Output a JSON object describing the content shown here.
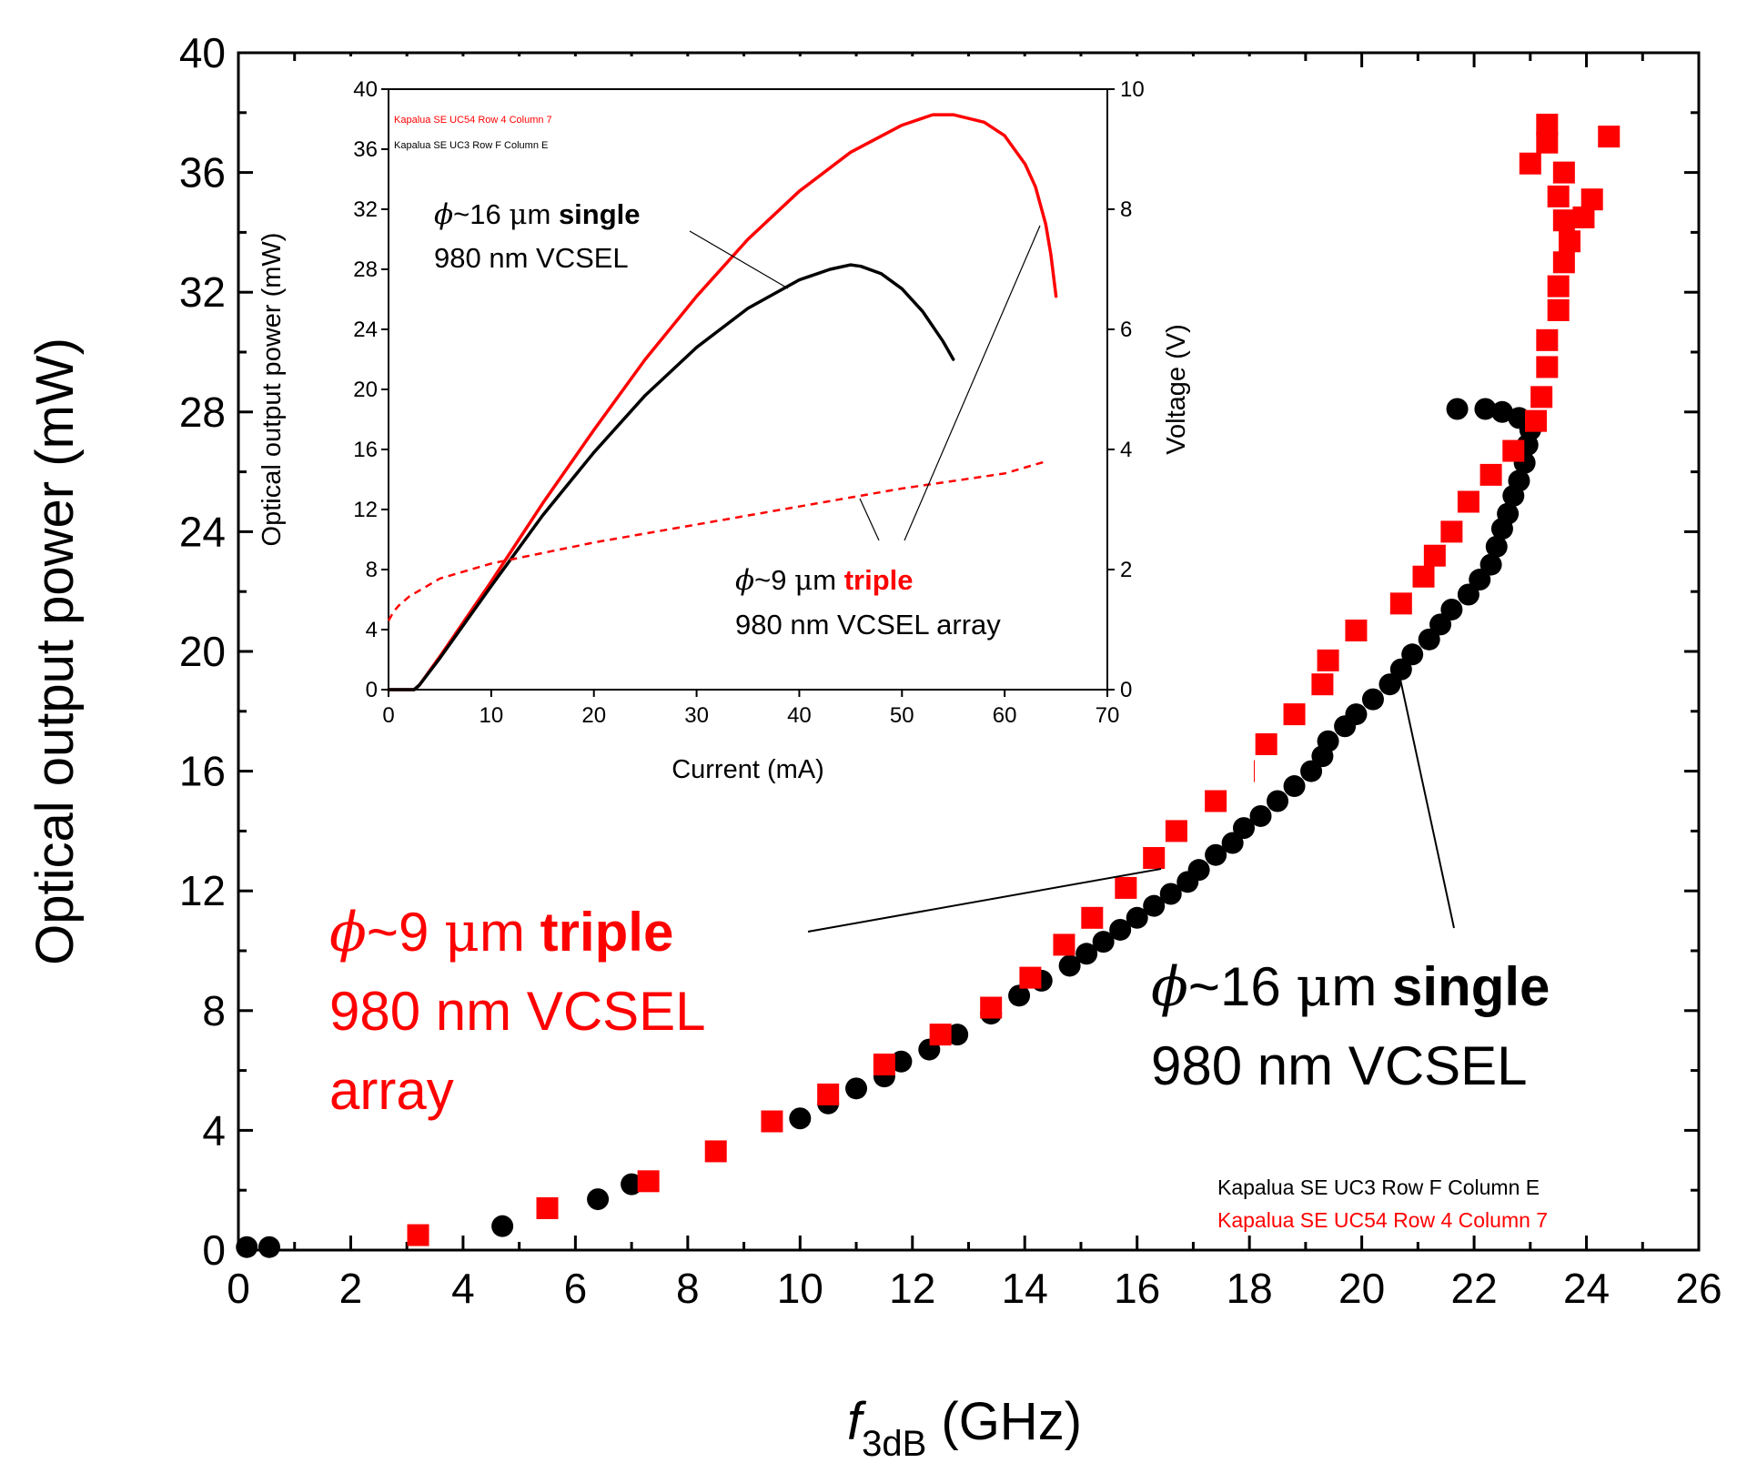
{
  "chart_data": [
    {
      "type": "scatter",
      "xlabel_main": "f",
      "xlabel_sub": "3dB",
      "xlabel_unit": " (GHz)",
      "ylabel": "Optical output power (mW)",
      "xlim": [
        0,
        26
      ],
      "ylim": [
        0,
        40
      ],
      "xticks": [
        "0",
        "2",
        "4",
        "6",
        "8",
        "10",
        "12",
        "14",
        "16",
        "18",
        "20",
        "22",
        "24",
        "26"
      ],
      "yticks": [
        "0",
        "4",
        "8",
        "12",
        "16",
        "20",
        "24",
        "28",
        "32",
        "36",
        "40"
      ],
      "series": [
        {
          "name": "Kapalua SE UC3 Row F Column E",
          "color": "#000000",
          "marker": "circle",
          "points": [
            [
              0.15,
              0.1
            ],
            [
              0.55,
              0.1
            ],
            [
              4.7,
              0.8
            ],
            [
              6.4,
              1.7
            ],
            [
              7.0,
              2.2
            ],
            [
              10.0,
              4.4
            ],
            [
              10.5,
              4.9
            ],
            [
              11.0,
              5.4
            ],
            [
              11.5,
              5.8
            ],
            [
              11.8,
              6.3
            ],
            [
              12.3,
              6.7
            ],
            [
              12.8,
              7.2
            ],
            [
              13.4,
              7.9
            ],
            [
              13.9,
              8.5
            ],
            [
              14.3,
              9.0
            ],
            [
              14.8,
              9.5
            ],
            [
              15.1,
              9.9
            ],
            [
              15.4,
              10.3
            ],
            [
              15.7,
              10.7
            ],
            [
              16.0,
              11.1
            ],
            [
              16.3,
              11.5
            ],
            [
              16.6,
              11.9
            ],
            [
              16.9,
              12.3
            ],
            [
              17.1,
              12.7
            ],
            [
              17.4,
              13.2
            ],
            [
              17.7,
              13.6
            ],
            [
              17.9,
              14.1
            ],
            [
              18.2,
              14.5
            ],
            [
              18.5,
              15.0
            ],
            [
              18.8,
              15.5
            ],
            [
              19.1,
              16.0
            ],
            [
              19.3,
              16.5
            ],
            [
              19.4,
              17.0
            ],
            [
              19.7,
              17.5
            ],
            [
              19.9,
              17.9
            ],
            [
              20.2,
              18.4
            ],
            [
              20.5,
              18.9
            ],
            [
              20.7,
              19.4
            ],
            [
              20.9,
              19.9
            ],
            [
              21.2,
              20.4
            ],
            [
              21.4,
              20.9
            ],
            [
              21.6,
              21.4
            ],
            [
              21.9,
              21.9
            ],
            [
              22.1,
              22.4
            ],
            [
              22.3,
              22.9
            ],
            [
              22.4,
              23.5
            ],
            [
              22.5,
              24.1
            ],
            [
              22.6,
              24.6
            ],
            [
              22.7,
              25.2
            ],
            [
              22.8,
              25.7
            ],
            [
              22.9,
              26.3
            ],
            [
              22.95,
              26.9
            ],
            [
              23.0,
              27.4
            ],
            [
              22.8,
              27.8
            ],
            [
              22.5,
              28.0
            ],
            [
              22.2,
              28.1
            ],
            [
              21.7,
              28.1
            ]
          ]
        },
        {
          "name": "Kapalua SE UC54 Row 4 Column 7",
          "color": "#ff0000",
          "marker": "square",
          "points": [
            [
              3.2,
              0.5
            ],
            [
              5.5,
              1.4
            ],
            [
              7.3,
              2.3
            ],
            [
              8.5,
              3.3
            ],
            [
              9.5,
              4.3
            ],
            [
              10.5,
              5.2
            ],
            [
              11.5,
              6.2
            ],
            [
              12.5,
              7.2
            ],
            [
              13.4,
              8.1
            ],
            [
              14.1,
              9.1
            ],
            [
              14.7,
              10.2
            ],
            [
              15.2,
              11.1
            ],
            [
              15.8,
              12.1
            ],
            [
              16.3,
              13.1
            ],
            [
              16.7,
              14.0
            ],
            [
              17.4,
              15.0
            ],
            [
              17.9,
              16.0
            ],
            [
              18.3,
              16.9
            ],
            [
              18.8,
              17.9
            ],
            [
              19.3,
              18.9
            ],
            [
              19.4,
              19.7
            ],
            [
              19.9,
              20.7
            ],
            [
              20.7,
              21.6
            ],
            [
              21.1,
              22.5
            ],
            [
              21.3,
              23.2
            ],
            [
              21.6,
              24.0
            ],
            [
              21.9,
              25.0
            ],
            [
              22.3,
              25.9
            ],
            [
              22.7,
              26.7
            ],
            [
              23.1,
              27.7
            ],
            [
              23.2,
              28.5
            ],
            [
              23.3,
              29.5
            ],
            [
              23.3,
              30.4
            ],
            [
              23.5,
              31.4
            ],
            [
              23.5,
              32.2
            ],
            [
              23.6,
              33.0
            ],
            [
              23.7,
              33.7
            ],
            [
              23.6,
              34.4
            ],
            [
              23.5,
              35.2
            ],
            [
              23.95,
              34.5
            ],
            [
              23.6,
              36.0
            ],
            [
              23.3,
              37.0
            ],
            [
              23.3,
              37.6
            ],
            [
              23.0,
              36.3
            ],
            [
              24.1,
              35.1
            ],
            [
              24.4,
              37.2
            ]
          ]
        }
      ],
      "legend": [
        {
          "text": "Kapalua SE UC3 Row F Column E",
          "color": "#000000"
        },
        {
          "text": "Kapalua SE UC54 Row 4 Column 7",
          "color": "#ff0000"
        }
      ],
      "legend_position": "bottom-right",
      "annotations": [
        {
          "phi": "ϕ",
          "a": "~9 ",
          "mu": "μ",
          "b": "m ",
          "bold": "triple",
          "line2": "980 nm VCSEL",
          "line3": "array",
          "color": "#ff0000"
        },
        {
          "phi": "ϕ",
          "a": "~16 ",
          "mu": "μ",
          "b": "m ",
          "bold": "single",
          "line2": "980 nm VCSEL",
          "color": "#000000"
        }
      ]
    },
    {
      "type": "line",
      "inset": true,
      "xlabel": "Current (mA)",
      "ylabel_left": "Optical output power (mW)",
      "ylabel_right": "Voltage (V)",
      "xlim": [
        0,
        70
      ],
      "ylim_left": [
        0,
        40
      ],
      "ylim_right": [
        0,
        10
      ],
      "xticks": [
        "0",
        "10",
        "20",
        "30",
        "40",
        "50",
        "60",
        "70"
      ],
      "yticks_left": [
        "0",
        "4",
        "8",
        "12",
        "16",
        "20",
        "24",
        "28",
        "32",
        "36",
        "40"
      ],
      "yticks_right": [
        "0",
        "2",
        "4",
        "6",
        "8",
        "10"
      ],
      "series": [
        {
          "name": "Kapalua SE UC54 Row 4 Column 7",
          "quantity": "power",
          "color": "#ff0000",
          "style": "solid",
          "points": [
            [
              0,
              0
            ],
            [
              2.5,
              0
            ],
            [
              3,
              0.3
            ],
            [
              5,
              2.2
            ],
            [
              10,
              7.2
            ],
            [
              15,
              12.4
            ],
            [
              20,
              17.3
            ],
            [
              25,
              22.0
            ],
            [
              30,
              26.2
            ],
            [
              35,
              30.0
            ],
            [
              40,
              33.2
            ],
            [
              45,
              35.8
            ],
            [
              50,
              37.6
            ],
            [
              53,
              38.3
            ],
            [
              55,
              38.3
            ],
            [
              58,
              37.8
            ],
            [
              60,
              36.9
            ],
            [
              62,
              35.0
            ],
            [
              63,
              33.5
            ],
            [
              64,
              31.0
            ],
            [
              64.5,
              29.0
            ],
            [
              65,
              26.2
            ]
          ]
        },
        {
          "name": "Kapalua SE UC3 Row F Column E",
          "quantity": "power",
          "color": "#000000",
          "style": "solid",
          "points": [
            [
              0,
              0
            ],
            [
              2.5,
              0
            ],
            [
              3,
              0.3
            ],
            [
              5,
              2.1
            ],
            [
              10,
              6.9
            ],
            [
              15,
              11.6
            ],
            [
              20,
              15.8
            ],
            [
              25,
              19.6
            ],
            [
              30,
              22.8
            ],
            [
              35,
              25.4
            ],
            [
              40,
              27.3
            ],
            [
              43,
              28.0
            ],
            [
              45,
              28.3
            ],
            [
              46,
              28.2
            ],
            [
              48,
              27.7
            ],
            [
              50,
              26.7
            ],
            [
              52,
              25.2
            ],
            [
              54,
              23.2
            ],
            [
              55,
              22.0
            ]
          ]
        },
        {
          "name": "Voltage",
          "quantity": "voltage",
          "color": "#ff0000",
          "style": "dashed",
          "points": [
            [
              0,
              1.15
            ],
            [
              0.5,
              1.3
            ],
            [
              1,
              1.4
            ],
            [
              2,
              1.55
            ],
            [
              5,
              1.85
            ],
            [
              10,
              2.1
            ],
            [
              20,
              2.45
            ],
            [
              30,
              2.75
            ],
            [
              40,
              3.05
            ],
            [
              50,
              3.35
            ],
            [
              60,
              3.6
            ],
            [
              64,
              3.8
            ]
          ]
        }
      ],
      "legend": [
        {
          "text": "Kapalua SE UC54 Row 4 Column 7",
          "color": "#ff0000"
        },
        {
          "text": "Kapalua SE UC3 Row F Column E",
          "color": "#000000"
        }
      ],
      "annotations": [
        {
          "phi": "ϕ",
          "a": "~16 ",
          "mu": "μ",
          "b": "m ",
          "bold": "single",
          "line2": "980 nm VCSEL",
          "color": "#000000"
        },
        {
          "phi": "ϕ",
          "a": "~9 ",
          "mu": "μ",
          "b": "m ",
          "bold": "triple",
          "line2": "980 nm VCSEL array",
          "color": "#ff0000"
        }
      ]
    }
  ]
}
